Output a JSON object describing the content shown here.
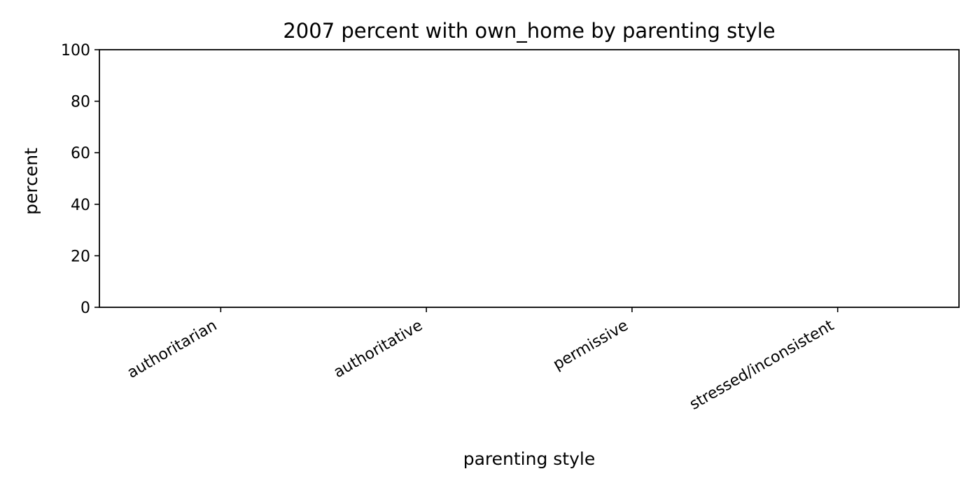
{
  "chart_data": {
    "type": "bar",
    "title": "2007 percent with own_home by parenting style",
    "xlabel": "parenting style",
    "ylabel": "percent",
    "categories": [
      "authoritarian",
      "authoritative",
      "permissive",
      "stressed/inconsistent"
    ],
    "series": [
      {
        "values": [
          null,
          null,
          null,
          null
        ]
      }
    ],
    "ylim": [
      0,
      100
    ],
    "yticks": [
      0,
      20,
      40,
      60,
      80,
      100
    ],
    "grid": false,
    "legend": "none"
  }
}
